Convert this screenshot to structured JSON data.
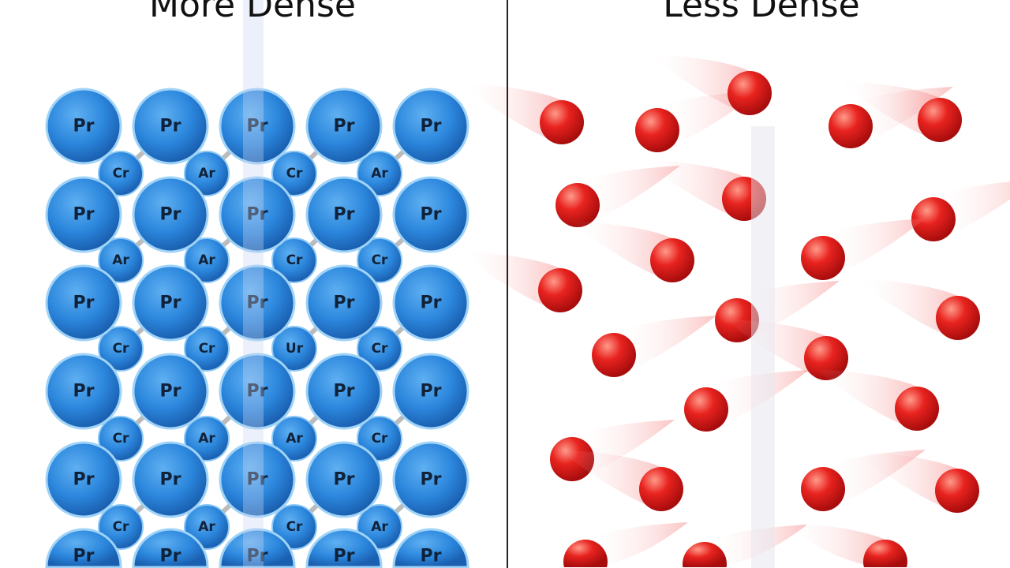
{
  "left_panel": {
    "title": "More Dense",
    "large_atom_label": "Pr",
    "small_atom_rows": [
      [
        "Cr",
        "Ar",
        "Cr",
        "Ar"
      ],
      [
        "Ar",
        "Ar",
        "Cr",
        "Cr"
      ],
      [
        "Cr",
        "Cr",
        "Ur",
        "Cr"
      ],
      [
        "Cr",
        "Ar",
        "Ar",
        "Cr"
      ],
      [
        "Cr",
        "Ar",
        "Cr",
        "Ar"
      ]
    ],
    "atom_color": "#2b86dc"
  },
  "right_panel": {
    "title": "Less Dense",
    "particle_color": "#e8231f"
  }
}
